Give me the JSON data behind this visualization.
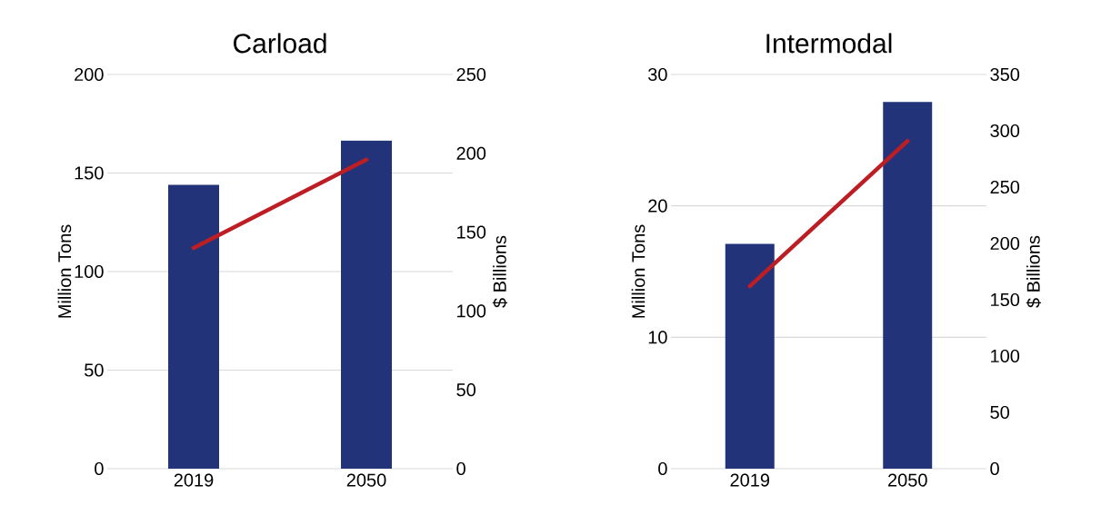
{
  "chart_data": [
    {
      "type": "bar",
      "title": "Carload",
      "ylabel": "Million Tons",
      "y2label": "$ Billions",
      "categories": [
        "2019",
        "2050"
      ],
      "grid": "y",
      "ylim": [
        0,
        200
      ],
      "yticks": [
        0,
        50,
        100,
        150,
        200
      ],
      "y2lim": [
        0,
        250
      ],
      "y2ticks": [
        0,
        50,
        100,
        150,
        200,
        250
      ],
      "series": [
        {
          "type": "bar",
          "color": "#22337a",
          "values": [
            144,
            166.5
          ]
        },
        {
          "type": "line",
          "axis": "y2",
          "color": "#bc1e24",
          "marker": "none",
          "line_style": "solid",
          "values": [
            140,
            196
          ]
        }
      ]
    },
    {
      "type": "bar",
      "title": "Intermodal",
      "ylabel": "Million Tons",
      "y2label": "$ Billions",
      "categories": [
        "2019",
        "2050"
      ],
      "grid": "y",
      "ylim": [
        0,
        30
      ],
      "yticks": [
        0,
        10,
        20,
        30
      ],
      "y2lim": [
        0,
        350
      ],
      "y2ticks": [
        0,
        50,
        100,
        150,
        200,
        250,
        300,
        350
      ],
      "series": [
        {
          "type": "bar",
          "color": "#22337a",
          "values": [
            17.1,
            27.9
          ]
        },
        {
          "type": "line",
          "axis": "y2",
          "color": "#bc1e24",
          "marker": "none",
          "line_style": "solid",
          "values": [
            162,
            291
          ]
        }
      ]
    }
  ]
}
